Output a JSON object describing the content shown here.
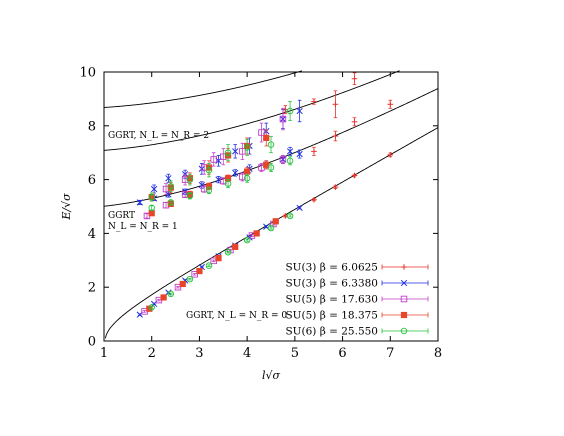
{
  "chart_data": {
    "type": "scatter",
    "xlabel": "l√σ",
    "ylabel": "E/√σ",
    "xlim": [
      1,
      8
    ],
    "ylim": [
      0,
      10
    ],
    "xticks": [
      "1",
      "2",
      "3",
      "4",
      "5",
      "6",
      "7",
      "8"
    ],
    "yticks": [
      "0",
      "2",
      "4",
      "6",
      "8",
      "10"
    ],
    "grid": false,
    "legend_position": "bottom-right",
    "annotations": [
      "GGRT, N_L = N_R = 2",
      "GGRT",
      "N_L = N_R = 1",
      "GGRT, N_L = N_R = 0"
    ],
    "curves": [
      {
        "label": "GGRT, N_L = N_R = 0",
        "n": 0
      },
      {
        "label": "GGRT, N_L = N_R = 1",
        "n": 1
      },
      {
        "label": "GGRT, N_L = N_R = 2",
        "n": 2
      },
      {
        "label": "",
        "n": 3
      }
    ],
    "series": [
      {
        "name": "SU(3) β = 6.0625",
        "color": "#e8312a",
        "marker": "plus",
        "points": [
          [
            4.8,
            4.65,
            0.04
          ],
          [
            5.4,
            5.25,
            0.04
          ],
          [
            5.85,
            5.72,
            0.05
          ],
          [
            6.25,
            6.15,
            0.05
          ],
          [
            7.0,
            6.92,
            0.07
          ],
          [
            5.4,
            7.05,
            0.15
          ],
          [
            5.85,
            7.62,
            0.18
          ],
          [
            6.25,
            8.15,
            0.15
          ],
          [
            7.0,
            8.8,
            0.15
          ],
          [
            4.8,
            8.6,
            0.15
          ],
          [
            5.4,
            8.9,
            0.1
          ],
          [
            5.85,
            8.8,
            0.5
          ],
          [
            6.25,
            9.75,
            0.22
          ]
        ]
      },
      {
        "name": "SU(3) β = 6.3380",
        "color": "#1f2ee0",
        "marker": "cross",
        "points": [
          [
            1.75,
            0.98,
            0.03
          ],
          [
            2.05,
            1.38,
            0.03
          ],
          [
            2.35,
            1.8,
            0.03
          ],
          [
            2.7,
            2.25,
            0.03
          ],
          [
            3.05,
            2.75,
            0.03
          ],
          [
            3.4,
            3.15,
            0.03
          ],
          [
            3.75,
            3.55,
            0.03
          ],
          [
            4.05,
            3.85,
            0.03
          ],
          [
            4.4,
            4.25,
            0.04
          ],
          [
            5.1,
            4.95,
            0.04
          ],
          [
            1.75,
            5.15,
            0.08
          ],
          [
            2.05,
            5.3,
            0.08
          ],
          [
            2.35,
            5.45,
            0.1
          ],
          [
            2.7,
            5.55,
            0.1
          ],
          [
            3.05,
            5.8,
            0.12
          ],
          [
            3.4,
            6.0,
            0.12
          ],
          [
            3.75,
            6.25,
            0.12
          ],
          [
            4.05,
            6.4,
            0.15
          ],
          [
            4.4,
            6.55,
            0.15
          ],
          [
            4.75,
            6.75,
            0.15
          ],
          [
            5.1,
            6.95,
            0.15
          ],
          [
            2.05,
            5.65,
            0.15
          ],
          [
            2.35,
            6.05,
            0.15
          ],
          [
            2.7,
            6.2,
            0.15
          ],
          [
            3.05,
            6.4,
            0.2
          ],
          [
            3.4,
            6.7,
            0.2
          ],
          [
            3.75,
            7.05,
            0.25
          ],
          [
            4.05,
            7.25,
            0.3
          ],
          [
            4.4,
            7.8,
            0.3
          ],
          [
            4.75,
            8.25,
            0.35
          ],
          [
            5.1,
            8.55,
            0.4
          ],
          [
            4.9,
            7.05,
            0.15
          ]
        ]
      },
      {
        "name": "SU(5) β = 17.630",
        "color": "#c03ec9",
        "marker": "square",
        "points": [
          [
            1.85,
            1.1,
            0.03
          ],
          [
            2.15,
            1.52,
            0.03
          ],
          [
            2.55,
            2.0,
            0.03
          ],
          [
            2.9,
            2.48,
            0.03
          ],
          [
            3.3,
            2.98,
            0.03
          ],
          [
            3.65,
            3.38,
            0.03
          ],
          [
            4.1,
            3.92,
            0.04
          ],
          [
            4.55,
            4.35,
            0.04
          ],
          [
            1.9,
            4.65,
            0.08
          ],
          [
            2.3,
            5.05,
            0.1
          ],
          [
            2.7,
            5.45,
            0.12
          ],
          [
            3.1,
            5.65,
            0.12
          ],
          [
            3.5,
            5.95,
            0.12
          ],
          [
            3.9,
            6.1,
            0.15
          ],
          [
            4.3,
            6.45,
            0.15
          ],
          [
            4.75,
            6.75,
            0.15
          ],
          [
            2.3,
            5.65,
            0.2
          ],
          [
            2.7,
            6.0,
            0.2
          ],
          [
            3.1,
            6.45,
            0.25
          ],
          [
            3.3,
            6.75,
            0.25
          ],
          [
            3.5,
            6.85,
            0.3
          ],
          [
            3.9,
            7.05,
            0.3
          ],
          [
            4.3,
            7.75,
            0.35
          ],
          [
            4.75,
            8.25,
            0.4
          ]
        ]
      },
      {
        "name": "SU(5) β = 18.375",
        "color": "#e8442a",
        "marker": "filled-square",
        "points": [
          [
            1.95,
            1.2,
            0.03
          ],
          [
            2.25,
            1.62,
            0.03
          ],
          [
            2.65,
            2.12,
            0.03
          ],
          [
            3.0,
            2.6,
            0.03
          ],
          [
            3.4,
            3.08,
            0.03
          ],
          [
            3.75,
            3.5,
            0.03
          ],
          [
            4.2,
            4.0,
            0.04
          ],
          [
            4.6,
            4.45,
            0.04
          ],
          [
            2.0,
            4.75,
            0.08
          ],
          [
            2.4,
            5.1,
            0.1
          ],
          [
            2.8,
            5.45,
            0.12
          ],
          [
            3.2,
            5.75,
            0.12
          ],
          [
            3.6,
            6.05,
            0.12
          ],
          [
            4.0,
            6.3,
            0.15
          ],
          [
            4.4,
            6.55,
            0.15
          ],
          [
            2.0,
            5.35,
            0.15
          ],
          [
            2.4,
            5.7,
            0.2
          ],
          [
            2.8,
            6.05,
            0.2
          ],
          [
            3.2,
            6.45,
            0.25
          ],
          [
            3.6,
            6.9,
            0.25
          ],
          [
            4.0,
            7.25,
            0.3
          ],
          [
            4.4,
            7.55,
            0.3
          ]
        ]
      },
      {
        "name": "SU(6) β = 25.550",
        "color": "#22c23a",
        "marker": "circle",
        "points": [
          [
            2.0,
            1.25,
            0.03
          ],
          [
            2.4,
            1.75,
            0.03
          ],
          [
            2.8,
            2.3,
            0.03
          ],
          [
            3.2,
            2.8,
            0.03
          ],
          [
            3.6,
            3.3,
            0.03
          ],
          [
            4.0,
            3.75,
            0.04
          ],
          [
            4.5,
            4.2,
            0.04
          ],
          [
            4.9,
            4.65,
            0.04
          ],
          [
            2.0,
            4.95,
            0.08
          ],
          [
            2.4,
            5.15,
            0.1
          ],
          [
            2.8,
            5.4,
            0.12
          ],
          [
            3.2,
            5.6,
            0.12
          ],
          [
            3.6,
            5.85,
            0.15
          ],
          [
            4.0,
            6.05,
            0.15
          ],
          [
            4.5,
            6.45,
            0.15
          ],
          [
            4.9,
            6.7,
            0.15
          ],
          [
            2.0,
            5.35,
            0.15
          ],
          [
            2.4,
            5.75,
            0.2
          ],
          [
            2.8,
            6.0,
            0.2
          ],
          [
            3.2,
            6.35,
            0.25
          ],
          [
            3.6,
            7.0,
            0.3
          ],
          [
            4.0,
            7.2,
            0.3
          ],
          [
            4.5,
            7.3,
            0.3
          ],
          [
            4.9,
            8.55,
            0.35
          ]
        ]
      }
    ]
  }
}
